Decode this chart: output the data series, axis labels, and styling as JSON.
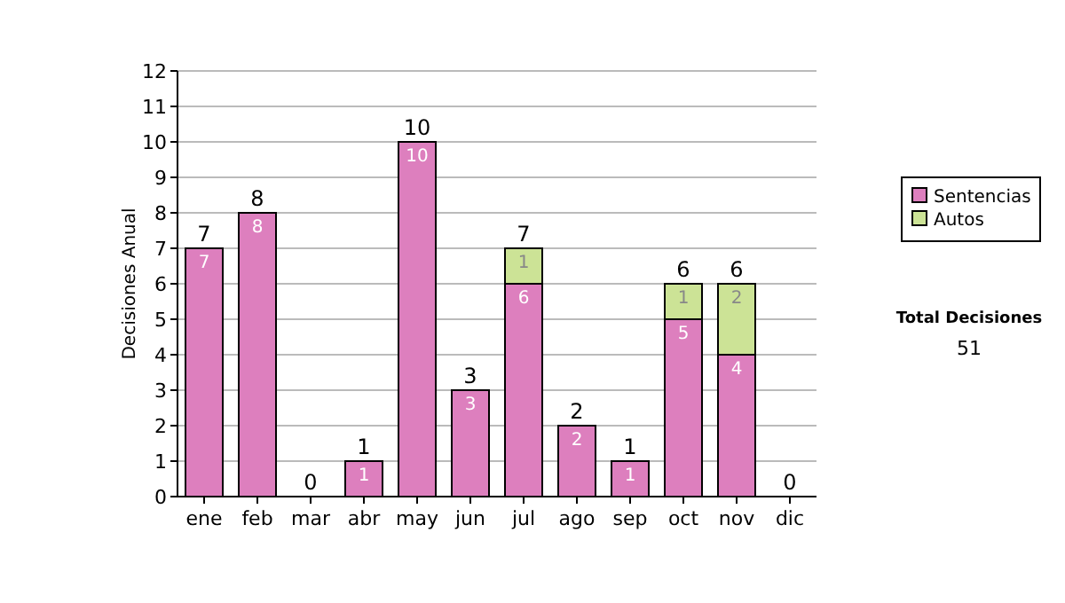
{
  "chart_data": {
    "type": "bar",
    "stacked": true,
    "ylabel": "Decisiones Anual",
    "categories": [
      "ene",
      "feb",
      "mar",
      "abr",
      "may",
      "jun",
      "jul",
      "ago",
      "sep",
      "oct",
      "nov",
      "dic"
    ],
    "series": [
      {
        "name": "Sentencias",
        "color": "#dd7fbe",
        "values": [
          7,
          8,
          0,
          1,
          10,
          3,
          6,
          2,
          1,
          5,
          4,
          0
        ],
        "value_labels": [
          "7",
          "8",
          null,
          "1",
          "10",
          "3",
          "6",
          "2",
          "1",
          "5",
          "4",
          null
        ]
      },
      {
        "name": "Autos",
        "color": "#cce396",
        "values": [
          0,
          0,
          0,
          0,
          0,
          0,
          1,
          0,
          0,
          1,
          2,
          0
        ],
        "value_labels": [
          null,
          null,
          null,
          null,
          null,
          null,
          "1",
          null,
          null,
          "1",
          "2",
          null
        ]
      }
    ],
    "totals": [
      "7",
      "8",
      "0",
      "1",
      "10",
      "3",
      "7",
      "2",
      "1",
      "6",
      "6",
      "0"
    ],
    "ylim": [
      0,
      12
    ],
    "yticks": [
      0,
      1,
      2,
      3,
      4,
      5,
      6,
      7,
      8,
      9,
      10,
      11,
      12
    ],
    "grid": "y",
    "legend": "right",
    "annotations": [
      "Total Decisiones",
      "51"
    ]
  }
}
